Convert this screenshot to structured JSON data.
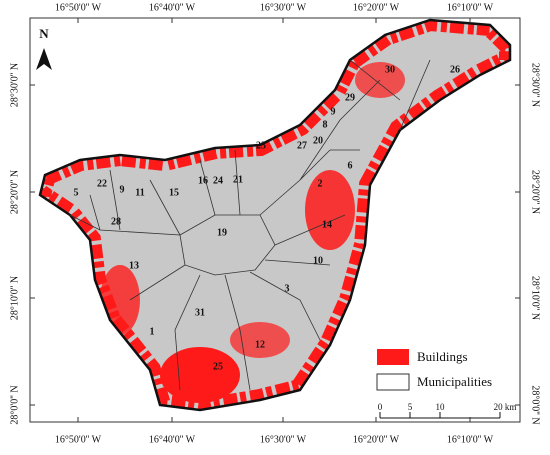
{
  "map": {
    "top_labels": [
      "16°50'0'' W",
      "16°40'0'' W",
      "16°30'0'' W",
      "16°20'0'' W",
      "16°10'0'' W"
    ],
    "bottom_labels": [
      "16°50'0'' W",
      "16°40'0'' W",
      "16°30'0'' W",
      "16°20'0'' W",
      "16°10'0'' W"
    ],
    "left_labels": [
      "28°30'0'' N",
      "28°20'0'' N",
      "28°10'0'' N",
      "28°0'0'' N"
    ],
    "right_labels": [
      "28°30'0'' N",
      "28°20'0'' N",
      "28°10'0'' N",
      "28°0'0'' N"
    ],
    "north": "N",
    "municipalities": [
      "30",
      "26",
      "29",
      "9",
      "8",
      "20",
      "27",
      "23",
      "6",
      "2",
      "22",
      "9",
      "11",
      "15",
      "16",
      "24",
      "21",
      "5",
      "28",
      "19",
      "14",
      "10",
      "13",
      "3",
      "31",
      "1",
      "12",
      "25"
    ],
    "legend": {
      "buildings": "Buildings",
      "municipalities": "Municipalities"
    },
    "scale_bar": [
      "0",
      "5",
      "10",
      "20 km"
    ]
  }
}
